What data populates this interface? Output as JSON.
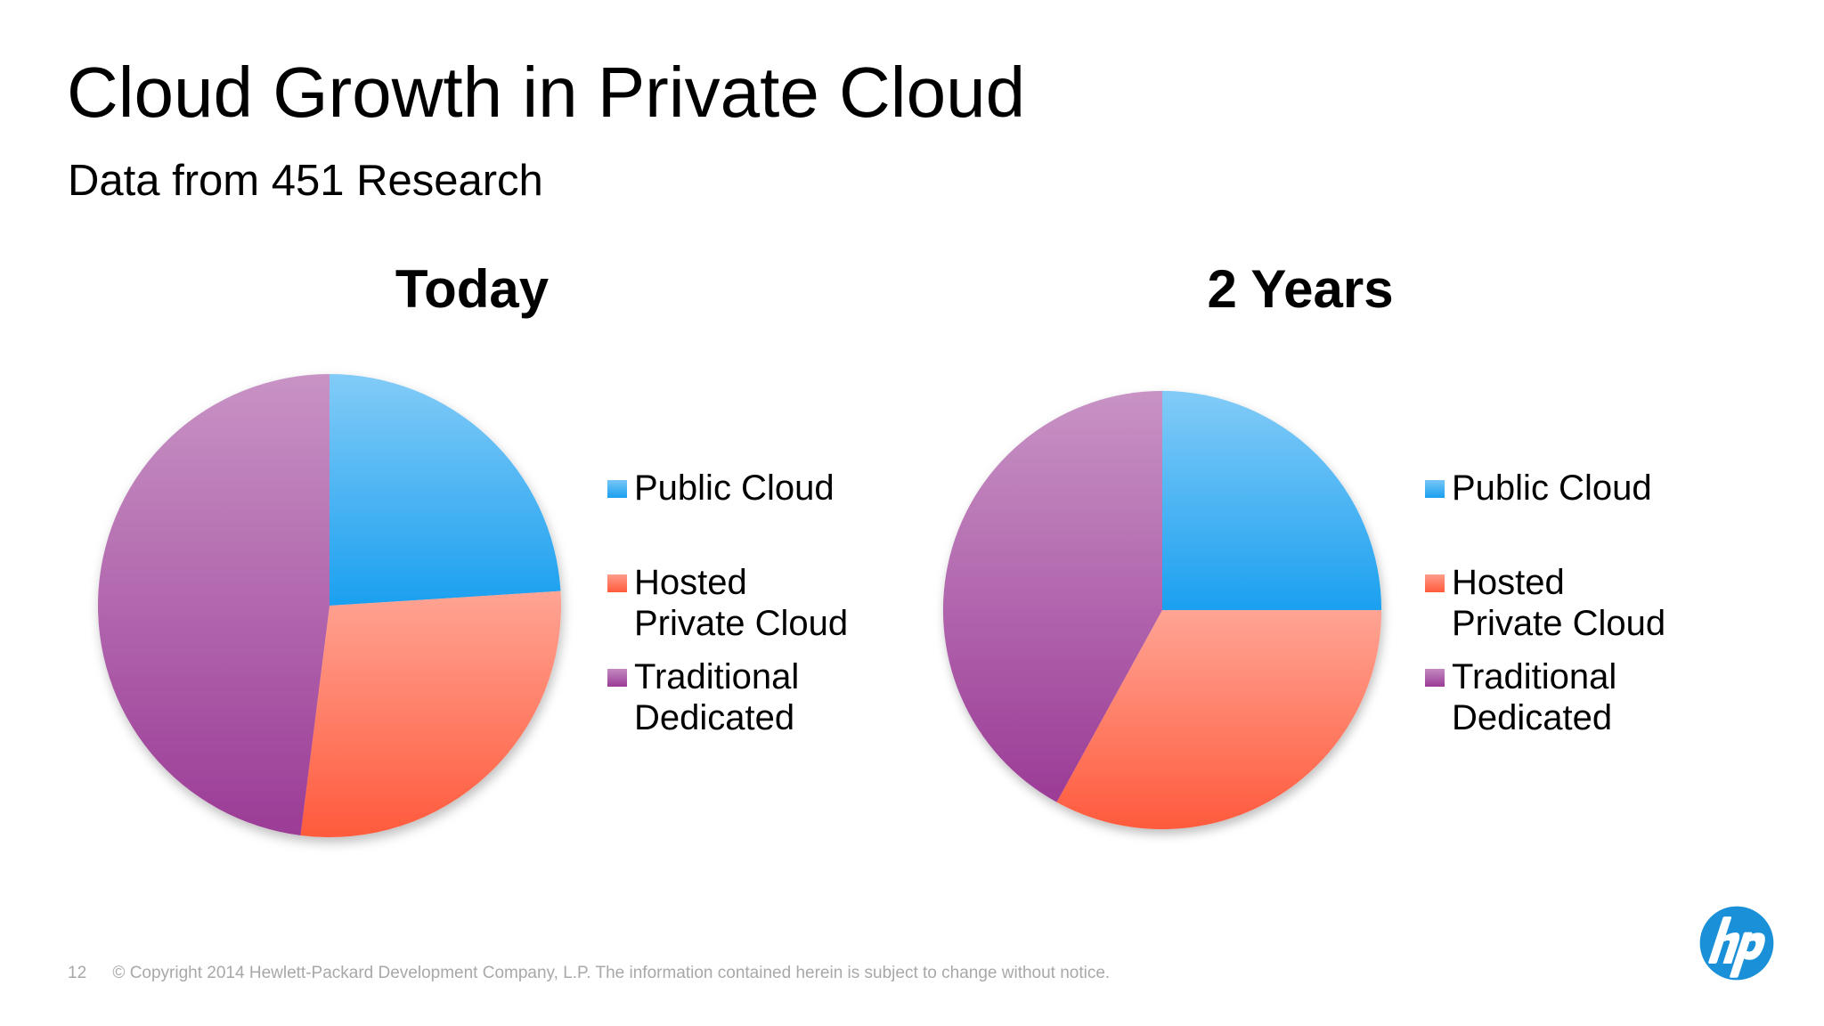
{
  "slide": {
    "title": "Cloud Growth in Private Cloud",
    "subtitle": "Data from 451 Research",
    "page_number": "12",
    "copyright": "© Copyright 2014 Hewlett-Packard Development Company, L.P.  The information contained herein is subject to change without notice.",
    "logo_icon": "hp-logo-icon",
    "logo_color": "#1a90d8"
  },
  "chart_data": [
    {
      "type": "pie",
      "title": "Today",
      "categories": [
        "Public Cloud",
        "Hosted\nPrivate Cloud",
        "Traditional\nDedicated"
      ],
      "values": [
        24,
        28,
        48
      ],
      "colors": [
        "#1ba0f0",
        "#ff5a3c",
        "#9b3b96"
      ],
      "legend_position": "right"
    },
    {
      "type": "pie",
      "title": "2 Years",
      "categories": [
        "Public Cloud",
        "Hosted\nPrivate Cloud",
        "Traditional\nDedicated"
      ],
      "values": [
        25,
        33,
        42
      ],
      "colors": [
        "#1ba0f0",
        "#ff5a3c",
        "#9b3b96"
      ],
      "legend_position": "right"
    }
  ]
}
